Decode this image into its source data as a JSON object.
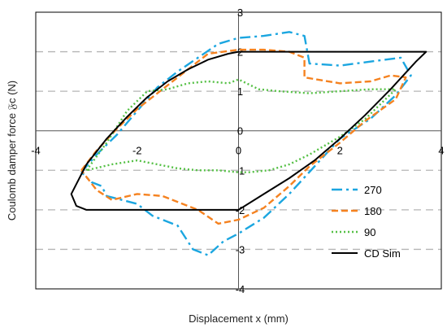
{
  "chart_data": {
    "type": "line",
    "xlabel": "Displacement x (mm)",
    "ylabel": "Coulomb damper force 𝔉c (N)",
    "xlim": [
      -4,
      4
    ],
    "ylim": [
      -4,
      3
    ],
    "x_ticks": [
      "-4",
      "-2",
      "0",
      "2",
      "4"
    ],
    "y_ticks": [
      "-4",
      "-3",
      "-2",
      "-1",
      "0",
      "1",
      "2",
      "3"
    ],
    "grid": "horizontal-dashed",
    "legend_position": "bottom-right",
    "series": [
      {
        "name": "270",
        "color": "#1ba6e0",
        "dash": "dash-dot",
        "x": [
          -3.1,
          -2.8,
          -2.4,
          -2.0,
          -1.6,
          -1.2,
          -0.8,
          -0.4,
          0.0,
          0.5,
          1.0,
          1.3,
          1.4,
          2.0,
          2.6,
          3.2,
          3.4,
          3.1,
          2.6,
          2.0,
          1.5,
          1.0,
          0.5,
          0.0,
          -0.3,
          -0.6,
          -0.9,
          -1.2,
          -1.7,
          -2.0,
          -2.3,
          -2.6,
          -2.7,
          -2.9,
          -3.1
        ],
        "y": [
          -1.05,
          -0.6,
          -0.1,
          0.5,
          1.1,
          1.5,
          1.85,
          2.2,
          2.35,
          2.4,
          2.5,
          2.4,
          1.7,
          1.65,
          1.75,
          1.85,
          1.4,
          0.9,
          0.3,
          -0.2,
          -0.9,
          -1.6,
          -2.2,
          -2.6,
          -2.8,
          -3.15,
          -3.0,
          -2.4,
          -2.15,
          -1.85,
          -1.75,
          -1.65,
          -1.4,
          -1.3,
          -1.05
        ]
      },
      {
        "name": "180",
        "color": "#f58220",
        "dash": "dashed",
        "x": [
          -3.1,
          -2.8,
          -2.4,
          -2.0,
          -1.5,
          -1.0,
          -0.6,
          0.0,
          0.5,
          1.0,
          1.3,
          1.3,
          2.0,
          2.6,
          3.0,
          3.3,
          3.1,
          2.5,
          2.0,
          1.4,
          1.0,
          0.5,
          0.0,
          -0.4,
          -0.8,
          -1.5,
          -2.0,
          -2.5,
          -2.8,
          -3.1
        ],
        "y": [
          -1.0,
          -0.5,
          0.05,
          0.55,
          1.05,
          1.55,
          1.95,
          2.05,
          2.05,
          2.0,
          1.85,
          1.35,
          1.2,
          1.25,
          1.4,
          1.35,
          0.8,
          0.25,
          -0.3,
          -0.9,
          -1.4,
          -1.95,
          -2.25,
          -2.35,
          -2.0,
          -1.65,
          -1.6,
          -1.75,
          -1.5,
          -1.0
        ]
      },
      {
        "name": "90",
        "color": "#55c045",
        "dash": "dotted",
        "x": [
          -3.0,
          -2.6,
          -2.2,
          -1.8,
          -1.4,
          -1.0,
          -0.6,
          -0.2,
          0.0,
          0.4,
          0.8,
          1.4,
          2.0,
          2.6,
          3.1,
          2.5,
          2.0,
          1.4,
          1.0,
          0.6,
          0.2,
          0.0,
          -0.4,
          -0.8,
          -1.2,
          -1.6,
          -2.0,
          -2.5,
          -3.0
        ],
        "y": [
          -1.0,
          -0.3,
          0.5,
          1.0,
          1.05,
          1.2,
          1.25,
          1.2,
          1.3,
          1.05,
          1.0,
          0.95,
          1.0,
          1.05,
          1.05,
          0.3,
          -0.15,
          -0.6,
          -0.85,
          -1.0,
          -1.05,
          -1.05,
          -1.0,
          -1.0,
          -0.95,
          -0.85,
          -0.75,
          -0.85,
          -1.0
        ]
      },
      {
        "name": "CD Sim",
        "color": "#000000",
        "dash": "solid",
        "x": [
          -3.2,
          -3.0,
          -2.6,
          -2.2,
          -1.8,
          -1.4,
          -1.0,
          -0.6,
          -0.2,
          0.0,
          0.5,
          1.0,
          2.0,
          3.0,
          3.6,
          3.7,
          3.5,
          3.0,
          2.5,
          2.0,
          1.5,
          1.0,
          0.5,
          0.0,
          -0.5,
          -1.0,
          -2.0,
          -3.0,
          -3.2,
          -3.3,
          -3.2
        ],
        "y": [
          -1.35,
          -0.85,
          -0.2,
          0.35,
          0.85,
          1.25,
          1.55,
          1.8,
          1.95,
          2.0,
          2.0,
          2.0,
          2.0,
          2.0,
          2.0,
          2.0,
          1.75,
          1.05,
          0.4,
          -0.2,
          -0.75,
          -1.2,
          -1.6,
          -2.0,
          -2.0,
          -2.0,
          -2.0,
          -2.0,
          -1.9,
          -1.6,
          -1.35
        ]
      }
    ]
  }
}
